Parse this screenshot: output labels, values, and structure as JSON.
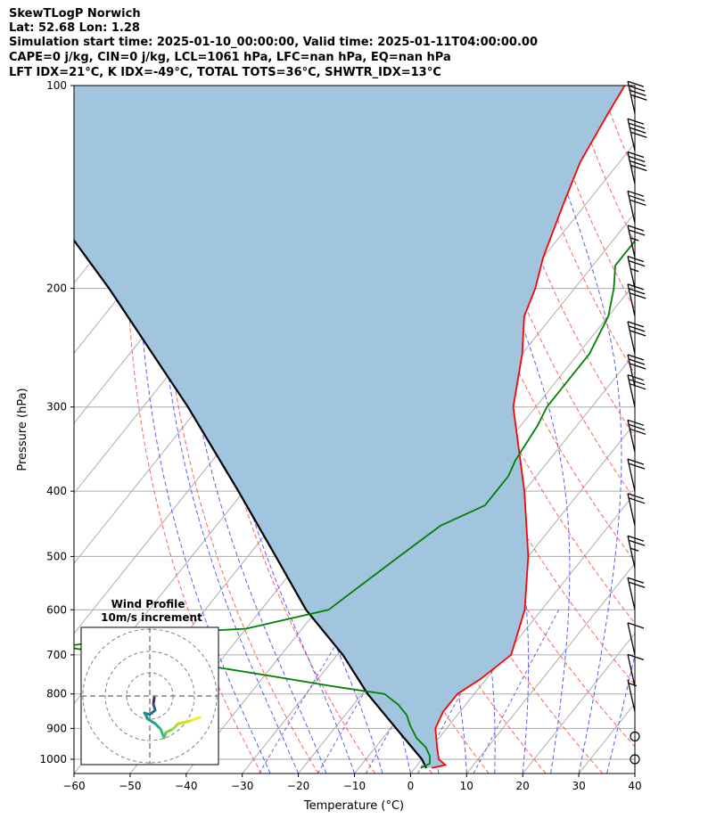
{
  "header": {
    "line1": "SkewTLogP Norwich",
    "line2": "Lat: 52.68   Lon: 1.28",
    "line3": "Simulation start time: 2025-01-10_00:00:00, Valid time: 2025-01-11T04:00:00.00",
    "line4": "CAPE=0 j/kg, CIN=0 j/kg, LCL=1061 hPa, LFC=nan hPa, EQ=nan hPa",
    "line5": "LFT IDX=21°C, K IDX=-49°C, TOTAL TOTS=36°C, SHWTR_IDX=13°C"
  },
  "chart_data": {
    "type": "line",
    "subtype": "skew-T log-P diagram",
    "xlabel": "Temperature (°C)",
    "ylabel": "Pressure (hPa)",
    "xlim": [
      -60,
      40
    ],
    "ylim": [
      1050,
      100
    ],
    "y_scale": "log",
    "x_ticks": [
      "−60",
      "−50",
      "−40",
      "−30",
      "−20",
      "−10",
      "0",
      "10",
      "20",
      "30",
      "40"
    ],
    "y_ticks": [
      "100",
      "200",
      "300",
      "400",
      "500",
      "600",
      "700",
      "800",
      "900",
      "1000"
    ],
    "grid": true,
    "colors": {
      "temperature": "#ff0000",
      "dewpoint": "#008000",
      "parcel": "#000000",
      "cape_shade": "#a1c5df",
      "dry_adiabat": "#ff6060",
      "moist_adiabat": "#5a5aff",
      "mixing_ratio": "#7a5fd0",
      "isotherm": "#aaaaaa"
    },
    "series": [
      {
        "role": "temperature",
        "points": [
          [
            1030,
            3
          ],
          [
            1020,
            5
          ],
          [
            1000,
            3
          ],
          [
            960,
            1
          ],
          [
            900,
            -2
          ],
          [
            850,
            -3
          ],
          [
            800,
            -3
          ],
          [
            760,
            -1
          ],
          [
            700,
            1
          ],
          [
            600,
            -3
          ],
          [
            500,
            -10
          ],
          [
            400,
            -20
          ],
          [
            300,
            -34
          ],
          [
            250,
            -40
          ],
          [
            220,
            -45
          ],
          [
            200,
            -47
          ],
          [
            180,
            -50
          ],
          [
            150,
            -54
          ],
          [
            130,
            -57
          ],
          [
            110,
            -59
          ],
          [
            100,
            -60
          ]
        ]
      },
      {
        "role": "dewpoint",
        "points": [
          [
            1030,
            1
          ],
          [
            1015,
            2
          ],
          [
            990,
            1
          ],
          [
            960,
            -1
          ],
          [
            930,
            -4
          ],
          [
            890,
            -7
          ],
          [
            860,
            -9
          ],
          [
            830,
            -12
          ],
          [
            800,
            -16
          ],
          [
            780,
            -26
          ],
          [
            750,
            -40
          ],
          [
            720,
            -55
          ],
          [
            700,
            -70
          ],
          [
            680,
            -80
          ],
          [
            650,
            -64
          ],
          [
            640,
            -50
          ],
          [
            600,
            -38
          ],
          [
            500,
            -33
          ],
          [
            450,
            -30
          ],
          [
            420,
            -25
          ],
          [
            380,
            -25
          ],
          [
            360,
            -26
          ],
          [
            320,
            -27
          ],
          [
            300,
            -28
          ],
          [
            280,
            -28
          ],
          [
            250,
            -28
          ],
          [
            220,
            -30
          ],
          [
            200,
            -33
          ],
          [
            185,
            -36
          ],
          [
            170,
            -36
          ],
          [
            150,
            -36
          ],
          [
            120,
            -34
          ],
          [
            100,
            -32
          ]
        ]
      },
      {
        "role": "parcel",
        "points": [
          [
            1030,
            2
          ],
          [
            1000,
            0
          ],
          [
            900,
            -9
          ],
          [
            800,
            -19
          ],
          [
            700,
            -29
          ],
          [
            600,
            -42
          ],
          [
            500,
            -55
          ],
          [
            400,
            -71
          ],
          [
            300,
            -92
          ],
          [
            200,
            -123
          ],
          [
            150,
            -146
          ],
          [
            100,
            -172
          ]
        ]
      }
    ],
    "wind_barbs_knots": [
      [
        1000,
        0
      ],
      [
        925,
        2
      ],
      [
        850,
        5
      ],
      [
        780,
        8
      ],
      [
        700,
        12
      ],
      [
        600,
        20
      ],
      [
        520,
        25
      ],
      [
        450,
        20
      ],
      [
        400,
        20
      ],
      [
        350,
        30
      ],
      [
        300,
        30
      ],
      [
        280,
        30
      ],
      [
        250,
        30
      ],
      [
        220,
        30
      ],
      [
        200,
        25
      ],
      [
        180,
        25
      ],
      [
        160,
        30
      ],
      [
        140,
        40
      ],
      [
        125,
        40
      ],
      [
        110,
        40
      ]
    ],
    "inset": {
      "title": "Wind Profile",
      "subtitle": "10m/s increment"
    }
  }
}
